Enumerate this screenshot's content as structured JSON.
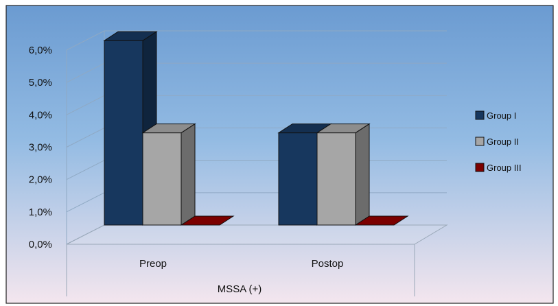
{
  "chart_data": {
    "type": "bar",
    "title": "",
    "xlabel": "MSSA (+)",
    "ylabel": "",
    "categories": [
      "Preop",
      "Postop"
    ],
    "series": [
      {
        "name": "Group I",
        "values": [
          5.7,
          2.85
        ],
        "color": "#17375e"
      },
      {
        "name": "Group II",
        "values": [
          2.85,
          2.85
        ],
        "color": "#a6a6a6"
      },
      {
        "name": "Group III",
        "values": [
          0,
          0
        ],
        "color": "#7b0000"
      }
    ],
    "ylim": [
      0,
      6
    ],
    "yticks": [
      "0,0%",
      "1,0%",
      "2,0%",
      "3,0%",
      "4,0%",
      "5,0%",
      "6,0%"
    ],
    "grid": true,
    "legend": "right",
    "style": "3d-clustered-column",
    "background": {
      "top": "#6b9bd1",
      "bottom": "#f4e6ee"
    }
  }
}
